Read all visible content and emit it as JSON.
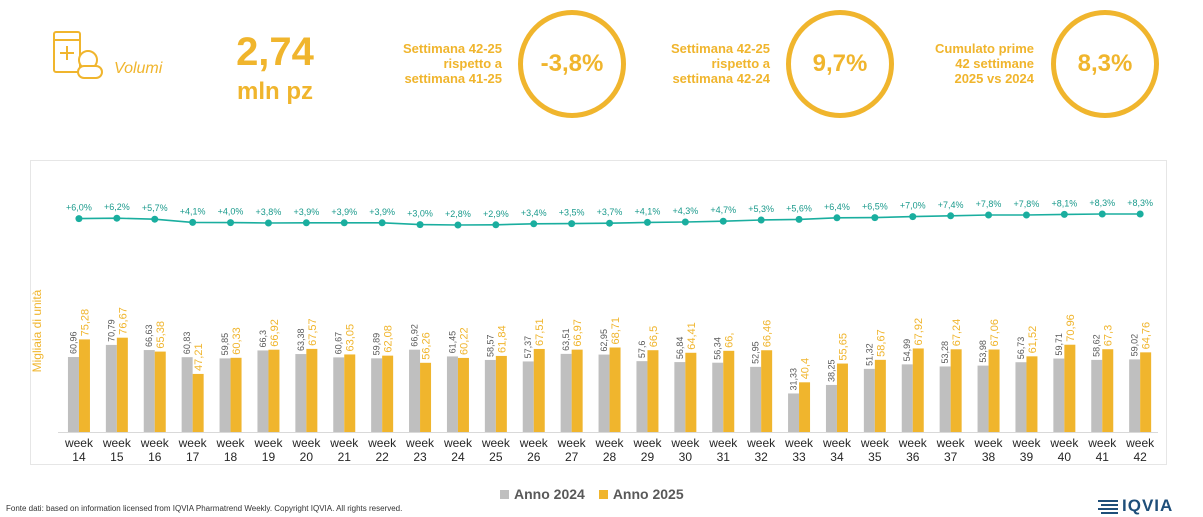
{
  "header": {
    "volumes_label": "Volumi",
    "value_number": "2,74",
    "value_unit": "mln pz",
    "kpis": [
      {
        "lines": [
          "Settimana 42-25",
          "rispetto a",
          "settimana 41-25"
        ],
        "value": "-3,8%"
      },
      {
        "lines": [
          "Settimana 42-25",
          "rispetto a",
          "settimana 42-24"
        ],
        "value": "9,7%"
      },
      {
        "lines": [
          "Cumulato prime",
          "42 settimane",
          "2025 vs 2024"
        ],
        "value": "8,3%"
      }
    ]
  },
  "colors": {
    "accent": "#F0B52D",
    "bar_2024": "#BFBFBF",
    "bar_2025": "#F0B52D",
    "line": "#1AAE9F",
    "line_label": "#1A9A8C"
  },
  "chart_data": {
    "type": "bar",
    "ylabel": "Migliaia di unità",
    "categories": [
      [
        "week",
        "14"
      ],
      [
        "week",
        "15"
      ],
      [
        "week",
        "16"
      ],
      [
        "week",
        "17"
      ],
      [
        "week",
        "18"
      ],
      [
        "week",
        "19"
      ],
      [
        "week",
        "20"
      ],
      [
        "week",
        "21"
      ],
      [
        "week",
        "22"
      ],
      [
        "week",
        "23"
      ],
      [
        "week",
        "24"
      ],
      [
        "week",
        "25"
      ],
      [
        "week",
        "26"
      ],
      [
        "week",
        "27"
      ],
      [
        "week",
        "28"
      ],
      [
        "week",
        "29"
      ],
      [
        "week",
        "30"
      ],
      [
        "week",
        "31"
      ],
      [
        "week",
        "32"
      ],
      [
        "week",
        "33"
      ],
      [
        "week",
        "34"
      ],
      [
        "week",
        "35"
      ],
      [
        "week",
        "36"
      ],
      [
        "week",
        "37"
      ],
      [
        "week",
        "38"
      ],
      [
        "week",
        "39"
      ],
      [
        "week",
        "40"
      ],
      [
        "week",
        "41"
      ],
      [
        "week",
        "42"
      ]
    ],
    "series": [
      {
        "name": "Anno 2024",
        "values": [
          60.96,
          70.79,
          66.63,
          60.83,
          59.85,
          66.3,
          63.38,
          60.67,
          59.89,
          66.92,
          61.45,
          58.57,
          57.37,
          63.51,
          62.95,
          57.6,
          56.84,
          56.34,
          52.95,
          31.33,
          38.25,
          51.32,
          54.99,
          53.28,
          53.98,
          56.73,
          59.71,
          58.62,
          59.02
        ],
        "labels": [
          "60,96",
          "70,79",
          "66,63",
          "60,83",
          "59,85",
          "66,3",
          "63,38",
          "60,67",
          "59,89",
          "66,92",
          "61,45",
          "58,57",
          "57,37",
          "63,51",
          "62,95",
          "57,6",
          "56,84",
          "56,34",
          "52,95",
          "31,33",
          "38,25",
          "51,32",
          "54,99",
          "53,28",
          "53,98",
          "56,73",
          "59,71",
          "58,62",
          "59,02"
        ]
      },
      {
        "name": "Anno 2025",
        "values": [
          75.28,
          76.67,
          65.38,
          47.21,
          60.33,
          66.92,
          67.57,
          63.05,
          62.08,
          56.26,
          60.22,
          61.84,
          67.51,
          66.97,
          68.71,
          66.5,
          64.41,
          66.0,
          66.46,
          40.4,
          55.65,
          58.67,
          67.92,
          67.24,
          67.06,
          61.52,
          70.96,
          67.3,
          64.76
        ],
        "labels": [
          "75,28",
          "76,67",
          "65,38",
          "47,21",
          "60,33",
          "66,92",
          "67,57",
          "63,05",
          "62,08",
          "56,26",
          "60,22",
          "61,84",
          "67,51",
          "66,97",
          "68,71",
          "66,5",
          "64,41",
          "66,",
          "66,46",
          "40,4",
          "55,65",
          "58,67",
          "67,92",
          "67,24",
          "67,06",
          "61,52",
          "70,96",
          "67,3",
          "64,76"
        ]
      }
    ],
    "cumulative_growth": {
      "values": [
        6.0,
        6.2,
        5.7,
        4.1,
        4.0,
        3.8,
        3.9,
        3.9,
        3.9,
        3.0,
        2.8,
        2.9,
        3.4,
        3.5,
        3.7,
        4.1,
        4.3,
        4.7,
        5.3,
        5.6,
        6.4,
        6.5,
        7.0,
        7.4,
        7.8,
        7.8,
        8.1,
        8.3,
        8.3
      ],
      "labels": [
        "+6,0%",
        "+6,2%",
        "+5,7%",
        "+4,1%",
        "+4,0%",
        "+3,8%",
        "+3,9%",
        "+3,9%",
        "+3,9%",
        "+3,0%",
        "+2,8%",
        "+2,9%",
        "+3,4%",
        "+3,5%",
        "+3,7%",
        "+4,1%",
        "+4,3%",
        "+4,7%",
        "+5,3%",
        "+5,6%",
        "+6,4%",
        "+6,5%",
        "+7,0%",
        "+7,4%",
        "+7,8%",
        "+7,8%",
        "+8,1%",
        "+8,3%",
        "+8,3%"
      ]
    },
    "ylim": [
      0,
      130
    ],
    "grid": false,
    "legend": "bottom-center"
  },
  "footer": {
    "source": "Fonte dati: based on information licensed from IQVIA Pharmatrend Weekly. Copyright IQVIA. All rights reserved.",
    "logo_text": "IQVIA"
  }
}
